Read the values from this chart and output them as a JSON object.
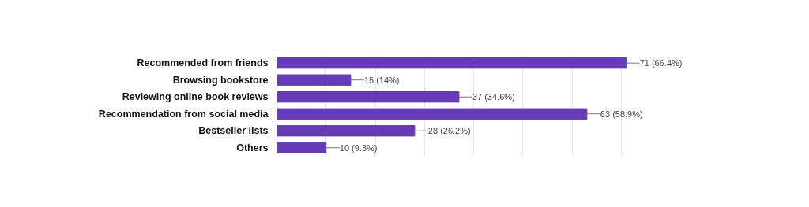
{
  "chart_data": {
    "type": "bar",
    "orientation": "horizontal",
    "categories": [
      "Recommended from friends",
      "Browsing bookstore",
      "Reviewing online book reviews",
      "Recommendation from social media",
      "Bestseller lists",
      "Others"
    ],
    "values": [
      71,
      15,
      37,
      63,
      28,
      10
    ],
    "color": "#673ab7",
    "value_labels": [
      "71 (66.4%)",
      "15 (14%)",
      "37 (34.6%)",
      "63 (58.9%)",
      "28 (26.2%)",
      "10 (9.3%)"
    ],
    "xticks": [
      {
        "value": 0,
        "label": null
      },
      {
        "value": 10,
        "label": null
      },
      {
        "value": 20,
        "label": null
      },
      {
        "value": 30,
        "label": null
      },
      {
        "value": 40,
        "label": null
      },
      {
        "value": 50,
        "label": null
      },
      {
        "value": 60,
        "label": null
      },
      {
        "value": 70,
        "label": null
      }
    ],
    "grid": "x",
    "tick_labels": "y"
  }
}
